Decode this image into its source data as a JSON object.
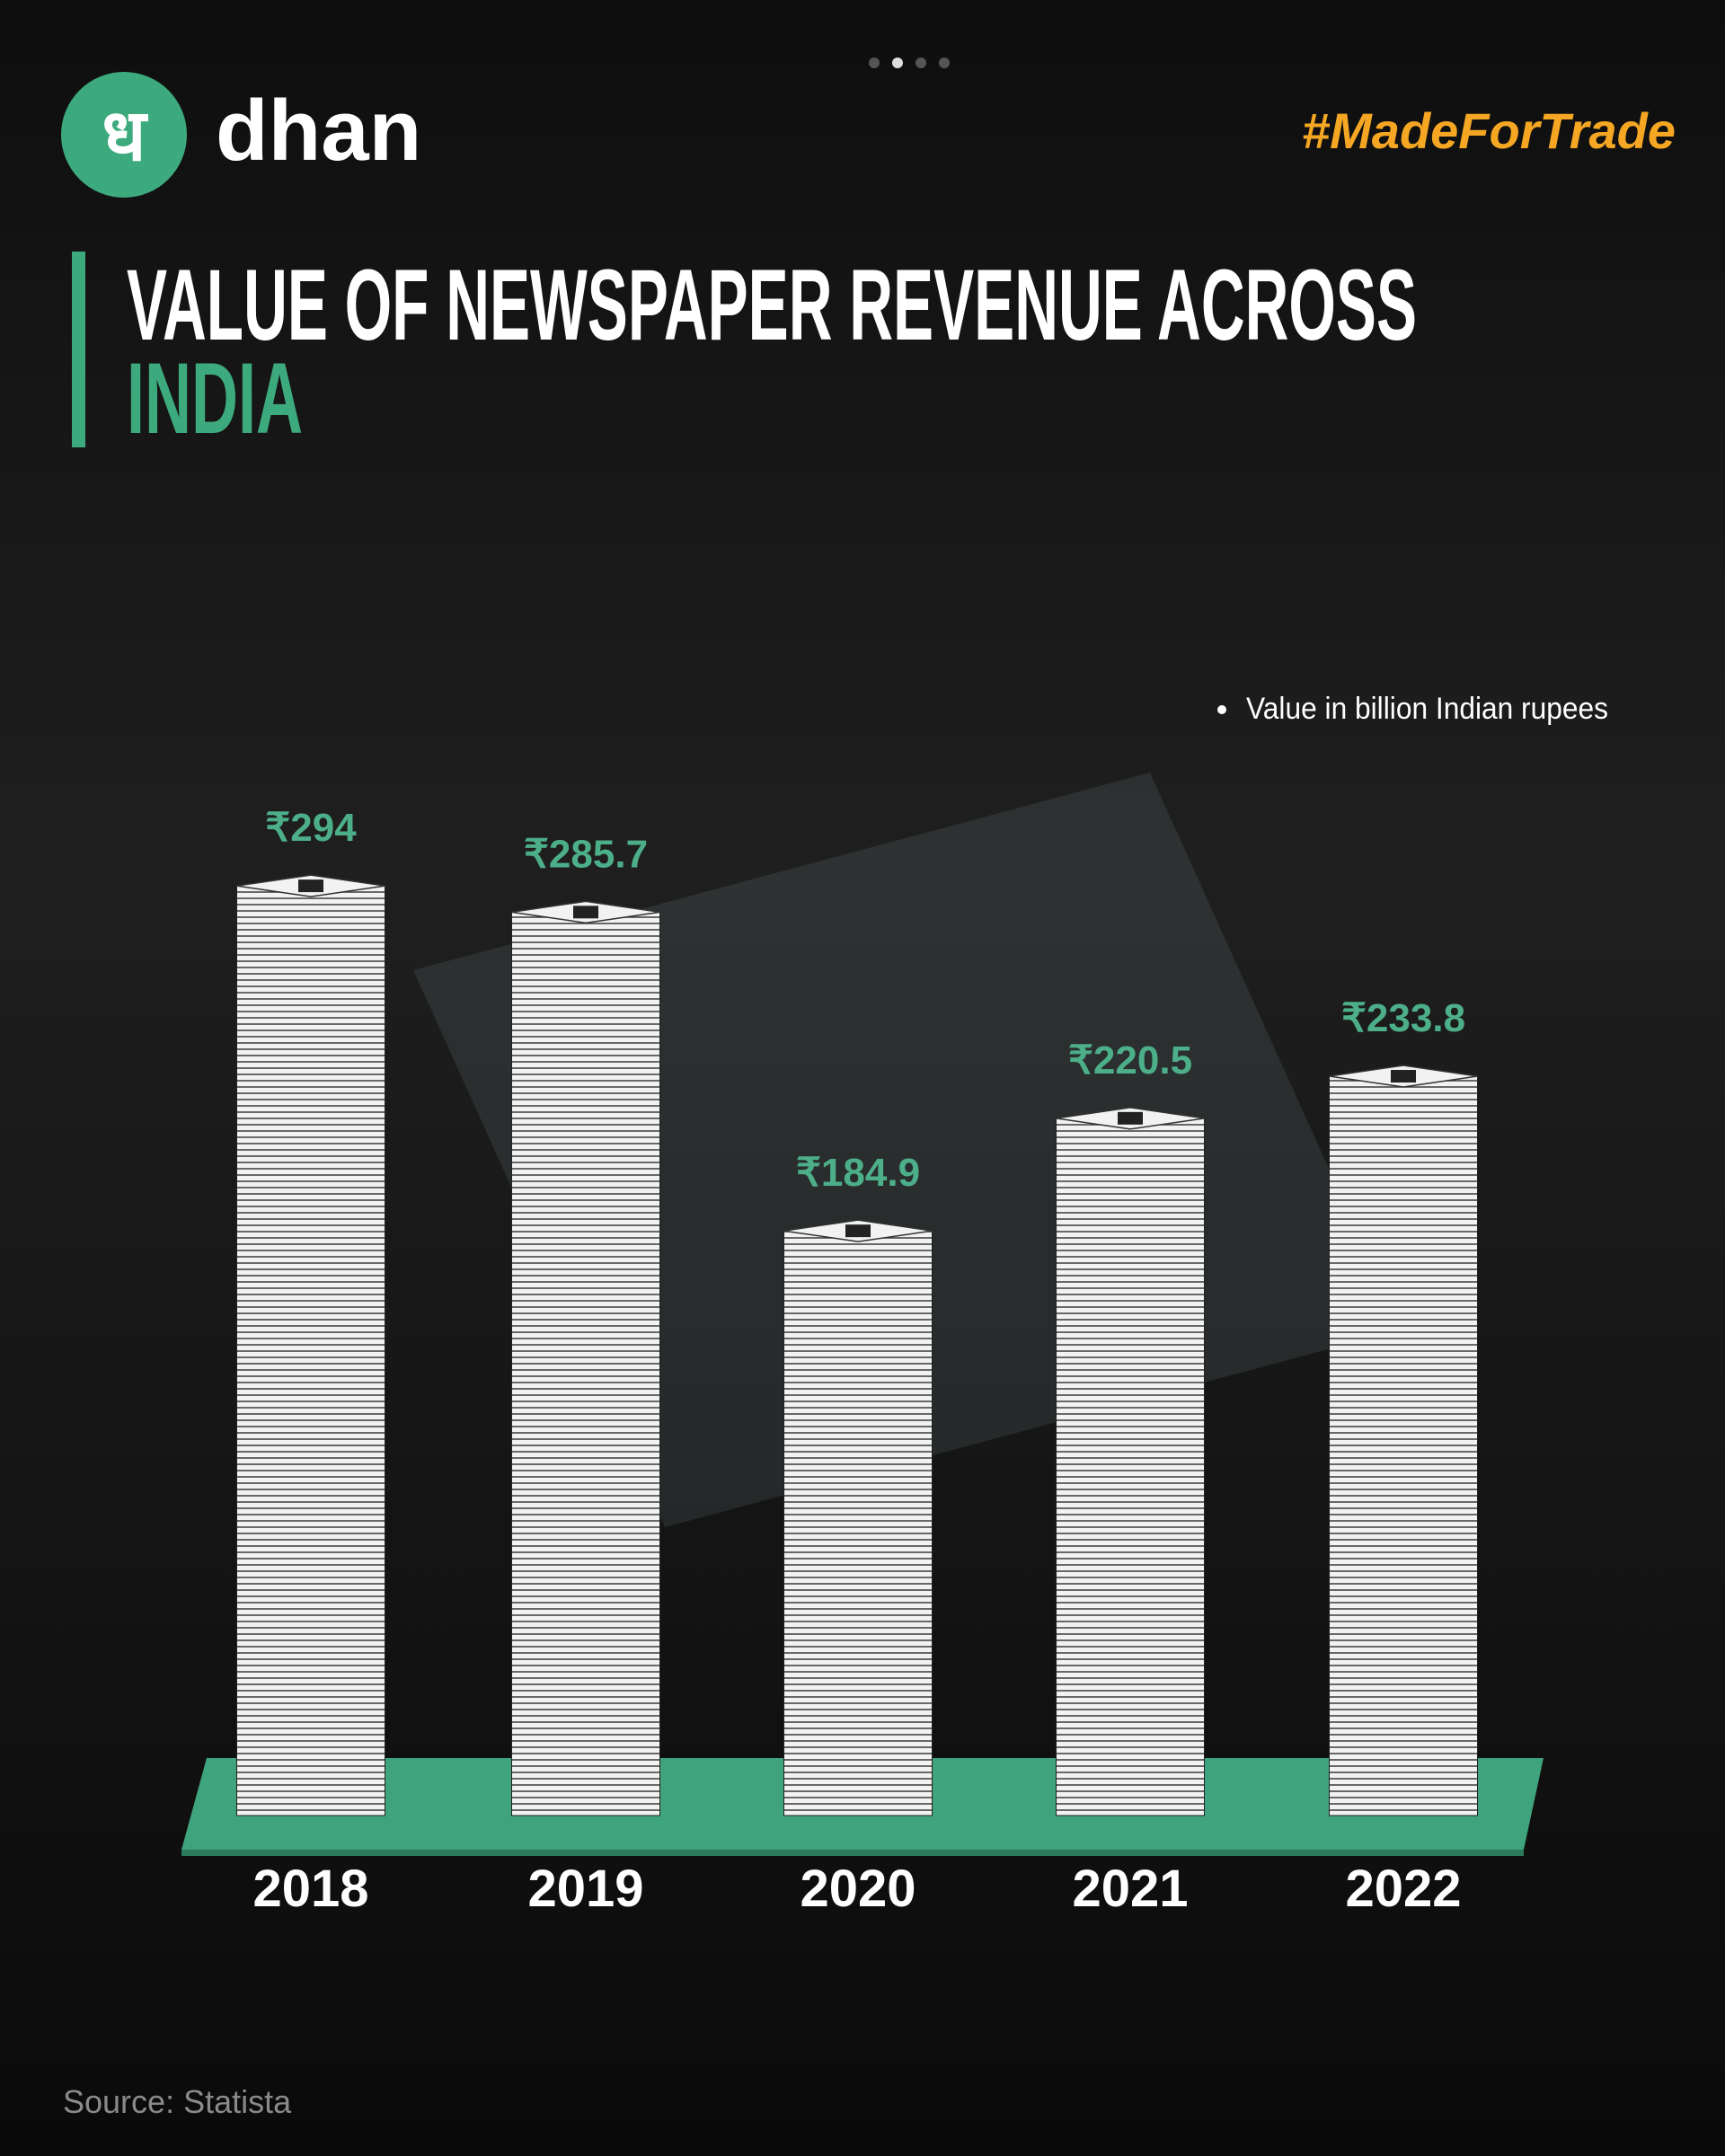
{
  "brand": {
    "logo_glyph": "ध",
    "name": "dhan",
    "tagline": "#MadeForTrade"
  },
  "chart_data": {
    "type": "bar",
    "title": "VALUE OF NEWSPAPER REVENUE ACROSS",
    "title_highlight": "INDIA",
    "note": "Value in billion Indian rupees",
    "categories": [
      "2018",
      "2019",
      "2020",
      "2021",
      "2022"
    ],
    "values": [
      294,
      285.7,
      184.9,
      220.5,
      233.8
    ],
    "value_labels": [
      "₹294",
      "₹285.7",
      "₹184.9",
      "₹220.5",
      "₹233.8"
    ],
    "color": "#f2f2f2",
    "label_color": "#4caf8a"
  },
  "source": "Source: Statista"
}
